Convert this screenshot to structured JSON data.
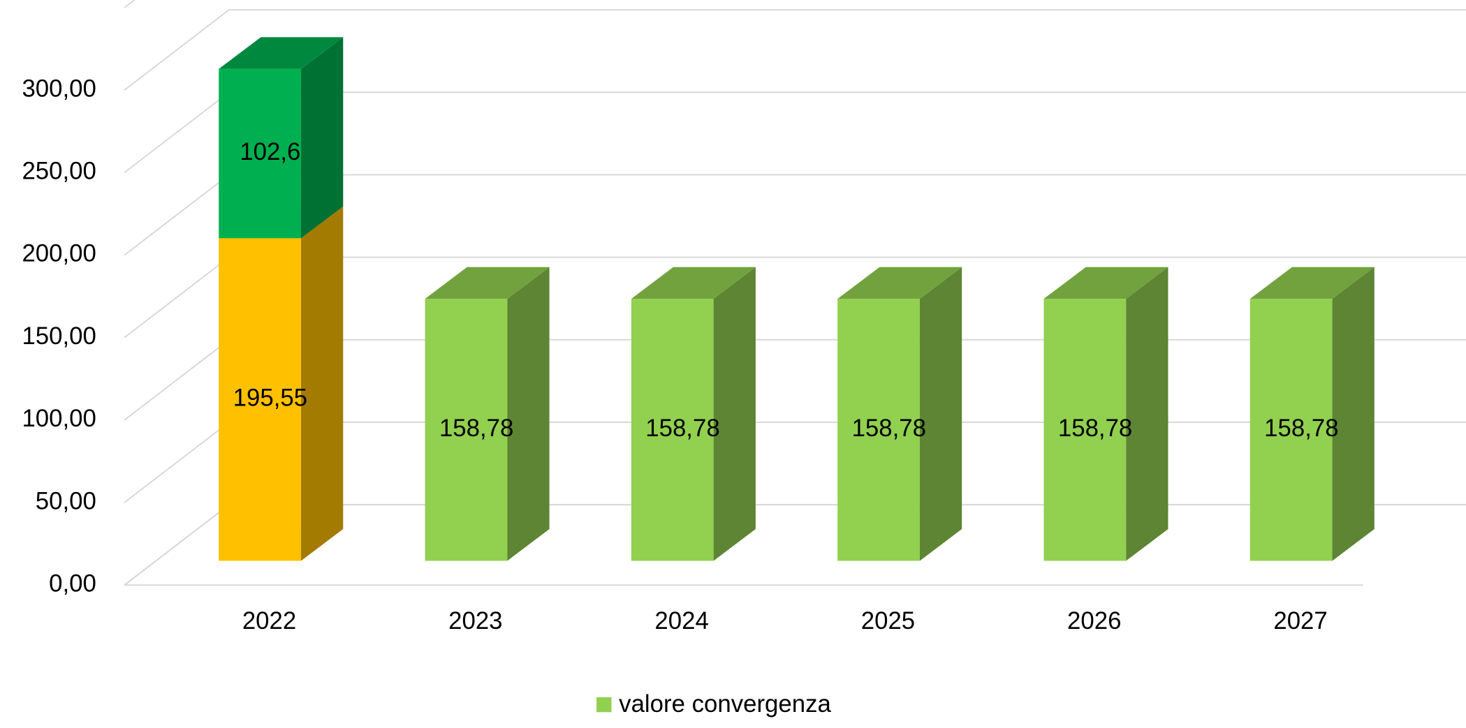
{
  "chart_data": {
    "type": "bar3d_stacked",
    "categories": [
      "2022",
      "2023",
      "2024",
      "2025",
      "2026",
      "2027"
    ],
    "series": [
      {
        "color": "#ffc000",
        "values": [
          195.55,
          null,
          null,
          null,
          null,
          null
        ],
        "value_labels": [
          "195,55",
          null,
          null,
          null,
          null,
          null
        ]
      },
      {
        "color": "#00b050",
        "values": [
          102.6,
          null,
          null,
          null,
          null,
          null
        ],
        "value_labels": [
          "102,6",
          null,
          null,
          null,
          null,
          null
        ]
      },
      {
        "name": "valore convergenza",
        "color": "#92d050",
        "values": [
          null,
          158.78,
          158.78,
          158.78,
          158.78,
          158.78
        ],
        "value_labels": [
          null,
          "158,78",
          "158,78",
          "158,78",
          "158,78",
          "158,78"
        ]
      }
    ],
    "ylim": [
      0,
      350
    ],
    "yticks": [
      {
        "value": 0,
        "label": "0,00"
      },
      {
        "value": 50,
        "label": "50,00"
      },
      {
        "value": 100,
        "label": "100,00"
      },
      {
        "value": 150,
        "label": "150,00"
      },
      {
        "value": 200,
        "label": "200,00"
      },
      {
        "value": 250,
        "label": "250,00"
      },
      {
        "value": 300,
        "label": "300,00"
      }
    ],
    "grid": true,
    "legend": "bottom"
  }
}
